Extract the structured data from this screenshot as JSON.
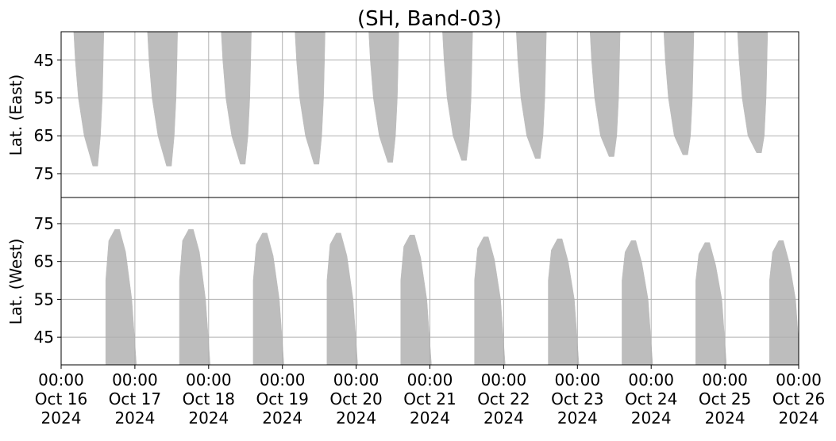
{
  "chart_data": [
    {
      "type": "polygon",
      "title": "(SH, Band-03)",
      "ylabel": "Lat. (East)",
      "color": "#bdbdbd",
      "grid": true,
      "xlim": [
        0,
        240
      ],
      "ylim": [
        81.3,
        37.5
      ],
      "yticks": [
        45,
        55,
        65,
        75
      ],
      "regions": [
        {
          "x": [
            4.1,
            4.6,
            5.6,
            7.5,
            10.3,
            11.9,
            12.8,
            13.4,
            13.7,
            13.9
          ],
          "y": [
            37.5,
            45,
            55,
            65,
            73,
            73,
            65,
            55,
            45,
            37.5
          ]
        },
        {
          "x": [
            28.1,
            28.6,
            29.6,
            31.5,
            34.3,
            35.9,
            36.8,
            37.4,
            37.7,
            37.9
          ],
          "y": [
            37.5,
            45,
            55,
            65,
            73,
            73,
            65,
            55,
            45,
            37.5
          ]
        },
        {
          "x": [
            52.1,
            52.6,
            53.6,
            55.5,
            58.3,
            59.9,
            60.8,
            61.4,
            61.7,
            61.9
          ],
          "y": [
            37.5,
            45,
            55,
            65,
            72.5,
            72.5,
            65,
            55,
            45,
            37.5
          ]
        },
        {
          "x": [
            76.1,
            76.6,
            77.6,
            79.5,
            82.3,
            83.9,
            84.8,
            85.4,
            85.7,
            85.9
          ],
          "y": [
            37.5,
            45,
            55,
            65,
            72.5,
            72.5,
            65,
            55,
            45,
            37.5
          ]
        },
        {
          "x": [
            100.1,
            100.6,
            101.6,
            103.5,
            106.3,
            107.9,
            108.8,
            109.4,
            109.7,
            109.9
          ],
          "y": [
            37.5,
            45,
            55,
            65,
            72,
            72,
            65,
            55,
            45,
            37.5
          ]
        },
        {
          "x": [
            124.1,
            124.6,
            125.6,
            127.5,
            130.3,
            131.9,
            132.8,
            133.4,
            133.7,
            133.9
          ],
          "y": [
            37.5,
            45,
            55,
            65,
            71.5,
            71.5,
            65,
            55,
            45,
            37.5
          ]
        },
        {
          "x": [
            148.1,
            148.6,
            149.6,
            151.5,
            154.3,
            155.9,
            156.8,
            157.4,
            157.7,
            157.9
          ],
          "y": [
            37.5,
            45,
            55,
            65,
            71,
            71,
            65,
            55,
            45,
            37.5
          ]
        },
        {
          "x": [
            172.1,
            172.6,
            173.6,
            175.5,
            178.3,
            179.9,
            180.8,
            181.4,
            181.7,
            181.9
          ],
          "y": [
            37.5,
            45,
            55,
            65,
            70.5,
            70.5,
            65,
            55,
            45,
            37.5
          ]
        },
        {
          "x": [
            196.1,
            196.6,
            197.6,
            199.5,
            202.3,
            203.9,
            204.8,
            205.4,
            205.7,
            205.9
          ],
          "y": [
            37.5,
            45,
            55,
            65,
            70,
            70,
            65,
            55,
            45,
            37.5
          ]
        },
        {
          "x": [
            220.1,
            220.6,
            221.6,
            223.5,
            226.3,
            227.9,
            228.8,
            229.4,
            229.7,
            229.9
          ],
          "y": [
            37.5,
            45,
            55,
            65,
            69.5,
            69.5,
            65,
            55,
            45,
            37.5
          ]
        }
      ]
    },
    {
      "type": "polygon",
      "ylabel": "Lat. (West)",
      "color": "#bdbdbd",
      "grid": true,
      "xlim": [
        0,
        240
      ],
      "ylim": [
        37.7,
        81.9
      ],
      "yticks": [
        45,
        55,
        65,
        75
      ],
      "xticks": [
        {
          "value": 0,
          "label": "00:00\nOct 16\n2024"
        },
        {
          "value": 24,
          "label": "00:00\nOct 17\n2024"
        },
        {
          "value": 48,
          "label": "00:00\nOct 18\n2024"
        },
        {
          "value": 72,
          "label": "00:00\nOct 19\n2024"
        },
        {
          "value": 96,
          "label": "00:00\nOct 20\n2024"
        },
        {
          "value": 120,
          "label": "00:00\nOct 21\n2024"
        },
        {
          "value": 144,
          "label": "00:00\nOct 22\n2024"
        },
        {
          "value": 168,
          "label": "00:00\nOct 23\n2024"
        },
        {
          "value": 192,
          "label": "00:00\nOct 24\n2024"
        },
        {
          "value": 216,
          "label": "00:00\nOct 25\n2024"
        },
        {
          "value": 240,
          "label": "00:00\nOct 26\n2024"
        }
      ],
      "regions": [
        {
          "x": [
            14.5,
            14.5,
            15.5,
            17.5,
            19,
            21,
            23,
            24.5
          ],
          "y": [
            37.7,
            60,
            70.5,
            73.5,
            73.5,
            67.5,
            55,
            37.7
          ]
        },
        {
          "x": [
            38.5,
            38.5,
            39.5,
            41.5,
            43,
            45,
            47,
            48.5
          ],
          "y": [
            37.7,
            60,
            70.5,
            73.5,
            73.5,
            67.5,
            55,
            37.7
          ]
        },
        {
          "x": [
            62.5,
            62.5,
            63.5,
            65.5,
            67,
            69,
            71,
            72.5
          ],
          "y": [
            37.7,
            60,
            69.5,
            72.5,
            72.5,
            66.5,
            55,
            37.7
          ]
        },
        {
          "x": [
            86.5,
            86.5,
            87.5,
            89.5,
            91,
            93,
            95,
            96.5
          ],
          "y": [
            37.7,
            60,
            69.5,
            72.5,
            72.5,
            66.5,
            55,
            37.7
          ]
        },
        {
          "x": [
            110.5,
            110.5,
            111.5,
            113.5,
            115,
            117,
            119,
            120.5
          ],
          "y": [
            37.7,
            60,
            69,
            72,
            72,
            66,
            55,
            37.7
          ]
        },
        {
          "x": [
            134.5,
            134.5,
            135.5,
            137.5,
            139,
            141,
            143,
            144.5
          ],
          "y": [
            37.7,
            60,
            68.5,
            71.5,
            71.5,
            65.5,
            55,
            37.7
          ]
        },
        {
          "x": [
            158.5,
            158.5,
            159.5,
            161.5,
            163,
            165,
            167,
            168.5
          ],
          "y": [
            37.7,
            60,
            68,
            71,
            71,
            65,
            55,
            37.7
          ]
        },
        {
          "x": [
            182.5,
            182.5,
            183.5,
            185.5,
            187,
            189,
            191,
            192.5
          ],
          "y": [
            37.7,
            60,
            67.5,
            70.5,
            70.5,
            64.5,
            55,
            37.7
          ]
        },
        {
          "x": [
            206.5,
            206.5,
            207.5,
            209.5,
            211,
            213,
            215,
            216.5
          ],
          "y": [
            37.7,
            60,
            67,
            70,
            70,
            64,
            55,
            37.7
          ]
        },
        {
          "x": [
            230.5,
            230.5,
            231.5,
            233.5,
            235,
            237,
            239,
            240.5
          ],
          "y": [
            37.7,
            60,
            67.5,
            70.5,
            70.5,
            64.5,
            55,
            37.7
          ]
        }
      ]
    }
  ]
}
